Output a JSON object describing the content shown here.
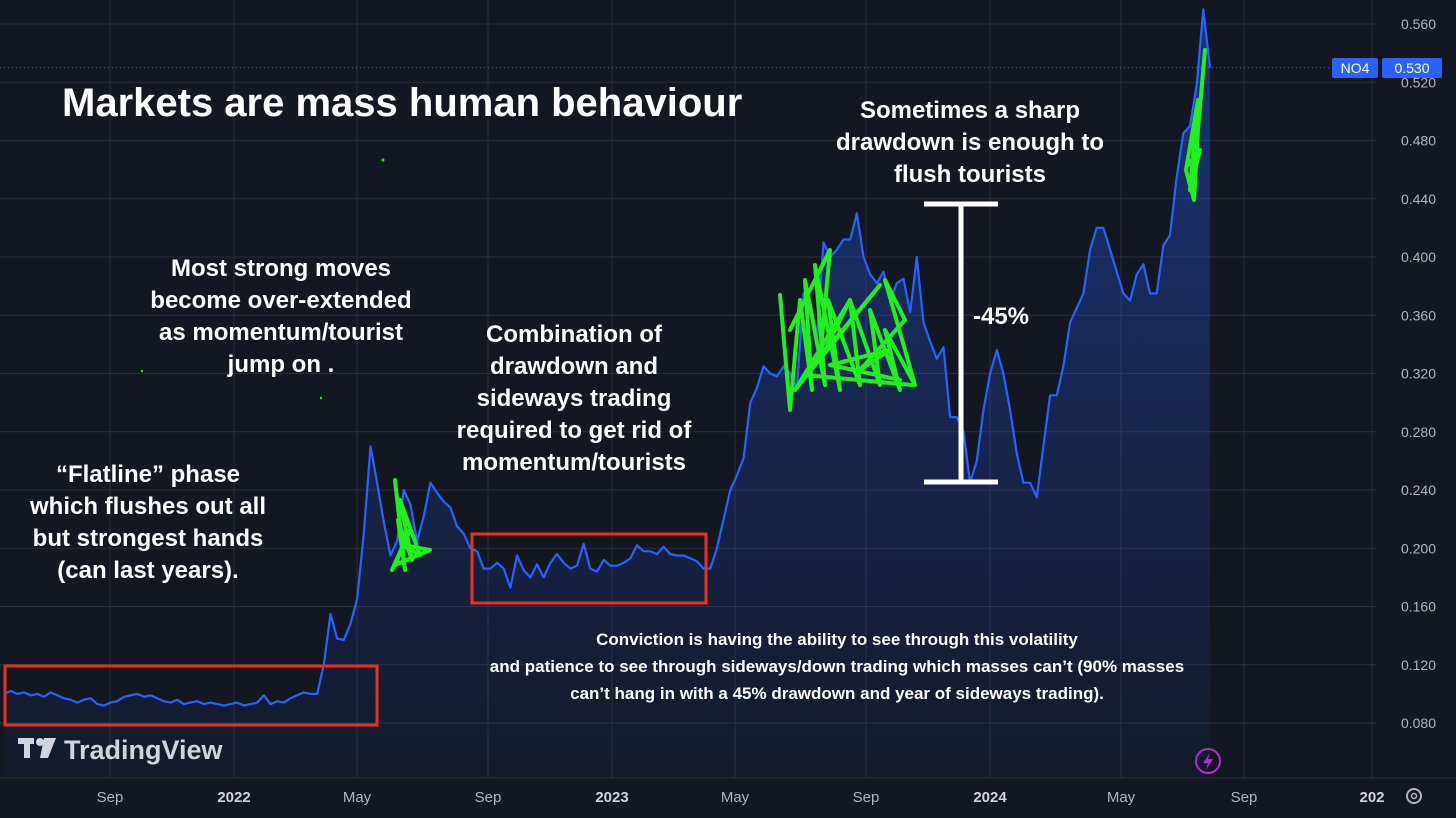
{
  "chart_data": {
    "type": "area",
    "symbol": "NO4",
    "last_price": "0.530",
    "y_ticks": [
      "0.560",
      "0.520",
      "0.480",
      "0.440",
      "0.400",
      "0.360",
      "0.320",
      "0.280",
      "0.240",
      "0.200",
      "0.160",
      "0.120",
      "0.080"
    ],
    "x_ticks": [
      {
        "label": "Sep",
        "bold": false
      },
      {
        "label": "2022",
        "bold": true
      },
      {
        "label": "May",
        "bold": false
      },
      {
        "label": "Sep",
        "bold": false
      },
      {
        "label": "2023",
        "bold": true
      },
      {
        "label": "May",
        "bold": false
      },
      {
        "label": "Sep",
        "bold": false
      },
      {
        "label": "2024",
        "bold": true
      },
      {
        "label": "May",
        "bold": false
      },
      {
        "label": "Sep",
        "bold": false
      },
      {
        "label": "202",
        "bold": true
      }
    ],
    "ylim": [
      0.06,
      0.57
    ],
    "xlim": [
      0,
      60
    ],
    "grid": true,
    "series": [
      {
        "color": "#2962ff",
        "points": [
          [
            0,
            0.1
          ],
          [
            0.3,
            0.102
          ],
          [
            0.6,
            0.1
          ],
          [
            0.9,
            0.101
          ],
          [
            1.2,
            0.099
          ],
          [
            1.5,
            0.1
          ],
          [
            1.8,
            0.098
          ],
          [
            2.1,
            0.101
          ],
          [
            2.4,
            0.099
          ],
          [
            2.7,
            0.097
          ],
          [
            3.0,
            0.096
          ],
          [
            3.3,
            0.094
          ],
          [
            3.6,
            0.096
          ],
          [
            3.9,
            0.097
          ],
          [
            4.2,
            0.093
          ],
          [
            4.5,
            0.092
          ],
          [
            4.8,
            0.094
          ],
          [
            5.1,
            0.095
          ],
          [
            5.4,
            0.098
          ],
          [
            5.7,
            0.099
          ],
          [
            6.0,
            0.1
          ],
          [
            6.3,
            0.098
          ],
          [
            6.6,
            0.099
          ],
          [
            6.9,
            0.097
          ],
          [
            7.2,
            0.095
          ],
          [
            7.5,
            0.094
          ],
          [
            7.8,
            0.096
          ],
          [
            8.1,
            0.093
          ],
          [
            8.4,
            0.094
          ],
          [
            8.7,
            0.095
          ],
          [
            9.0,
            0.093
          ],
          [
            9.3,
            0.094
          ],
          [
            9.6,
            0.093
          ],
          [
            9.9,
            0.092
          ],
          [
            10.2,
            0.093
          ],
          [
            10.5,
            0.094
          ],
          [
            10.8,
            0.092
          ],
          [
            11.1,
            0.093
          ],
          [
            11.4,
            0.094
          ],
          [
            11.7,
            0.099
          ],
          [
            12.0,
            0.093
          ],
          [
            12.3,
            0.095
          ],
          [
            12.6,
            0.094
          ],
          [
            12.9,
            0.097
          ],
          [
            13.2,
            0.099
          ],
          [
            13.5,
            0.101
          ],
          [
            13.8,
            0.1
          ],
          [
            14.1,
            0.1
          ],
          [
            14.4,
            0.12
          ],
          [
            14.7,
            0.155
          ],
          [
            15.0,
            0.138
          ],
          [
            15.3,
            0.137
          ],
          [
            15.6,
            0.148
          ],
          [
            15.9,
            0.165
          ],
          [
            16.2,
            0.21
          ],
          [
            16.5,
            0.27
          ],
          [
            16.8,
            0.245
          ],
          [
            17.1,
            0.218
          ],
          [
            17.4,
            0.195
          ],
          [
            17.7,
            0.205
          ],
          [
            18.0,
            0.24
          ],
          [
            18.3,
            0.23
          ],
          [
            18.6,
            0.205
          ],
          [
            18.9,
            0.222
          ],
          [
            19.2,
            0.245
          ],
          [
            19.5,
            0.238
          ],
          [
            19.8,
            0.232
          ],
          [
            20.1,
            0.228
          ],
          [
            20.4,
            0.215
          ],
          [
            20.7,
            0.21
          ],
          [
            21.0,
            0.2
          ],
          [
            21.3,
            0.198
          ],
          [
            21.6,
            0.186
          ],
          [
            21.9,
            0.186
          ],
          [
            22.2,
            0.19
          ],
          [
            22.5,
            0.186
          ],
          [
            22.8,
            0.173
          ],
          [
            23.1,
            0.195
          ],
          [
            23.4,
            0.185
          ],
          [
            23.7,
            0.18
          ],
          [
            24.0,
            0.189
          ],
          [
            24.3,
            0.18
          ],
          [
            24.6,
            0.19
          ],
          [
            24.9,
            0.196
          ],
          [
            25.2,
            0.19
          ],
          [
            25.5,
            0.186
          ],
          [
            25.8,
            0.188
          ],
          [
            26.1,
            0.203
          ],
          [
            26.4,
            0.186
          ],
          [
            26.7,
            0.184
          ],
          [
            27.0,
            0.192
          ],
          [
            27.3,
            0.188
          ],
          [
            27.6,
            0.188
          ],
          [
            27.9,
            0.19
          ],
          [
            28.2,
            0.193
          ],
          [
            28.5,
            0.202
          ],
          [
            28.8,
            0.198
          ],
          [
            29.1,
            0.198
          ],
          [
            29.4,
            0.196
          ],
          [
            29.7,
            0.201
          ],
          [
            30.0,
            0.196
          ],
          [
            30.3,
            0.195
          ],
          [
            30.6,
            0.195
          ],
          [
            30.9,
            0.193
          ],
          [
            31.2,
            0.191
          ],
          [
            31.5,
            0.186
          ],
          [
            31.8,
            0.186
          ],
          [
            32.1,
            0.2
          ],
          [
            32.4,
            0.22
          ],
          [
            32.7,
            0.24
          ],
          [
            33.0,
            0.25
          ],
          [
            33.3,
            0.262
          ],
          [
            33.6,
            0.3
          ],
          [
            33.9,
            0.31
          ],
          [
            34.2,
            0.325
          ],
          [
            34.5,
            0.32
          ],
          [
            34.8,
            0.318
          ],
          [
            35.1,
            0.325
          ],
          [
            35.4,
            0.32
          ],
          [
            35.7,
            0.31
          ],
          [
            36.0,
            0.375
          ],
          [
            36.3,
            0.37
          ],
          [
            36.6,
            0.345
          ],
          [
            36.9,
            0.41
          ],
          [
            37.2,
            0.4
          ],
          [
            37.5,
            0.405
          ],
          [
            37.8,
            0.412
          ],
          [
            38.1,
            0.412
          ],
          [
            38.4,
            0.43
          ],
          [
            38.7,
            0.4
          ],
          [
            39.0,
            0.388
          ],
          [
            39.3,
            0.382
          ],
          [
            39.6,
            0.39
          ],
          [
            39.9,
            0.37
          ],
          [
            40.2,
            0.382
          ],
          [
            40.5,
            0.385
          ],
          [
            40.8,
            0.362
          ],
          [
            41.1,
            0.4
          ],
          [
            41.4,
            0.355
          ],
          [
            41.7,
            0.342
          ],
          [
            42.0,
            0.33
          ],
          [
            42.3,
            0.338
          ],
          [
            42.6,
            0.29
          ],
          [
            42.9,
            0.29
          ],
          [
            43.2,
            0.28
          ],
          [
            43.5,
            0.245
          ],
          [
            43.8,
            0.26
          ],
          [
            44.1,
            0.295
          ],
          [
            44.4,
            0.32
          ],
          [
            44.7,
            0.336
          ],
          [
            45.0,
            0.32
          ],
          [
            45.3,
            0.295
          ],
          [
            45.6,
            0.265
          ],
          [
            45.9,
            0.245
          ],
          [
            46.2,
            0.245
          ],
          [
            46.5,
            0.235
          ],
          [
            46.8,
            0.27
          ],
          [
            47.1,
            0.305
          ],
          [
            47.4,
            0.305
          ],
          [
            47.7,
            0.325
          ],
          [
            48.0,
            0.355
          ],
          [
            48.3,
            0.365
          ],
          [
            48.6,
            0.375
          ],
          [
            48.9,
            0.405
          ],
          [
            49.2,
            0.42
          ],
          [
            49.5,
            0.42
          ],
          [
            49.8,
            0.405
          ],
          [
            50.1,
            0.39
          ],
          [
            50.4,
            0.375
          ],
          [
            50.7,
            0.37
          ],
          [
            51.0,
            0.388
          ],
          [
            51.3,
            0.395
          ],
          [
            51.6,
            0.375
          ],
          [
            51.9,
            0.375
          ],
          [
            52.2,
            0.408
          ],
          [
            52.5,
            0.415
          ],
          [
            52.8,
            0.455
          ],
          [
            53.1,
            0.485
          ],
          [
            53.4,
            0.49
          ],
          [
            53.7,
            0.518
          ],
          [
            54.0,
            0.57
          ],
          [
            54.3,
            0.53
          ]
        ]
      }
    ],
    "title": "Markets are mass human behaviour",
    "annotations": {
      "flatline": [
        "“Flatline” phase",
        "which flushes out all",
        "but strongest hands",
        "(can last years)."
      ],
      "strong_moves": [
        "Most strong moves",
        "become over-extended",
        "as momentum/tourist",
        "jump on ."
      ],
      "combination": [
        "Combination of",
        "drawdown and",
        "sideways trading",
        "required to get rid of",
        "momentum/tourists"
      ],
      "sometimes": [
        "Sometimes a sharp",
        "drawdown is enough to",
        "flush tourists"
      ],
      "drawdown_label": "-45%",
      "conviction": [
        "Conviction is having the ability to see through this volatility",
        "and patience to see through sideways/down trading which masses can’t (90% masses",
        "can’t hang in with a 45% drawdown and year of sideways trading)."
      ]
    },
    "watermark": "TradingView",
    "colors": {
      "background": "#131722",
      "line": "#2962ff",
      "box": "#e8321e",
      "scribble": "#22f01e",
      "tag": "#2962ff"
    }
  }
}
